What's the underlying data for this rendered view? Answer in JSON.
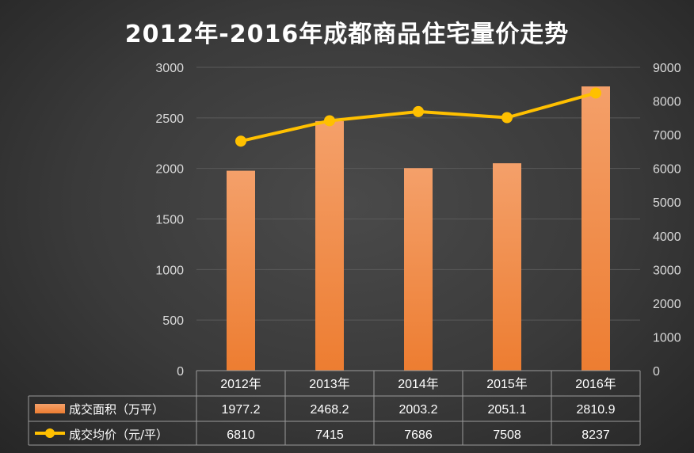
{
  "chart_data": {
    "type": "bar+line",
    "title": "2012年-2016年成都商品住宅量价走势",
    "categories": [
      "2012年",
      "2013年",
      "2014年",
      "2015年",
      "2016年"
    ],
    "series": [
      {
        "name": "成交面积（万平）",
        "type": "bar",
        "axis": "left",
        "color": "#ed7d31",
        "values": [
          1977.2,
          2468.2,
          2003.2,
          2051.1,
          2810.9
        ]
      },
      {
        "name": "成交均价（元/平）",
        "type": "line",
        "axis": "right",
        "color": "#ffc000",
        "values": [
          6810,
          7415,
          7686,
          7508,
          8237
        ]
      }
    ],
    "y_left": {
      "min": 0,
      "max": 3000,
      "ticks": [
        0,
        500,
        1000,
        1500,
        2000,
        2500,
        3000
      ]
    },
    "y_right": {
      "min": 0,
      "max": 9000,
      "ticks": [
        0,
        1000,
        2000,
        3000,
        4000,
        5000,
        6000,
        7000,
        8000,
        9000
      ]
    },
    "grid": true,
    "legend": "data table below plot",
    "data_table_values": [
      [
        "1977.2",
        "2468.2",
        "2003.2",
        "2051.1",
        "2810.9"
      ],
      [
        "6810",
        "7415",
        "7686",
        "7508",
        "8237"
      ]
    ]
  }
}
